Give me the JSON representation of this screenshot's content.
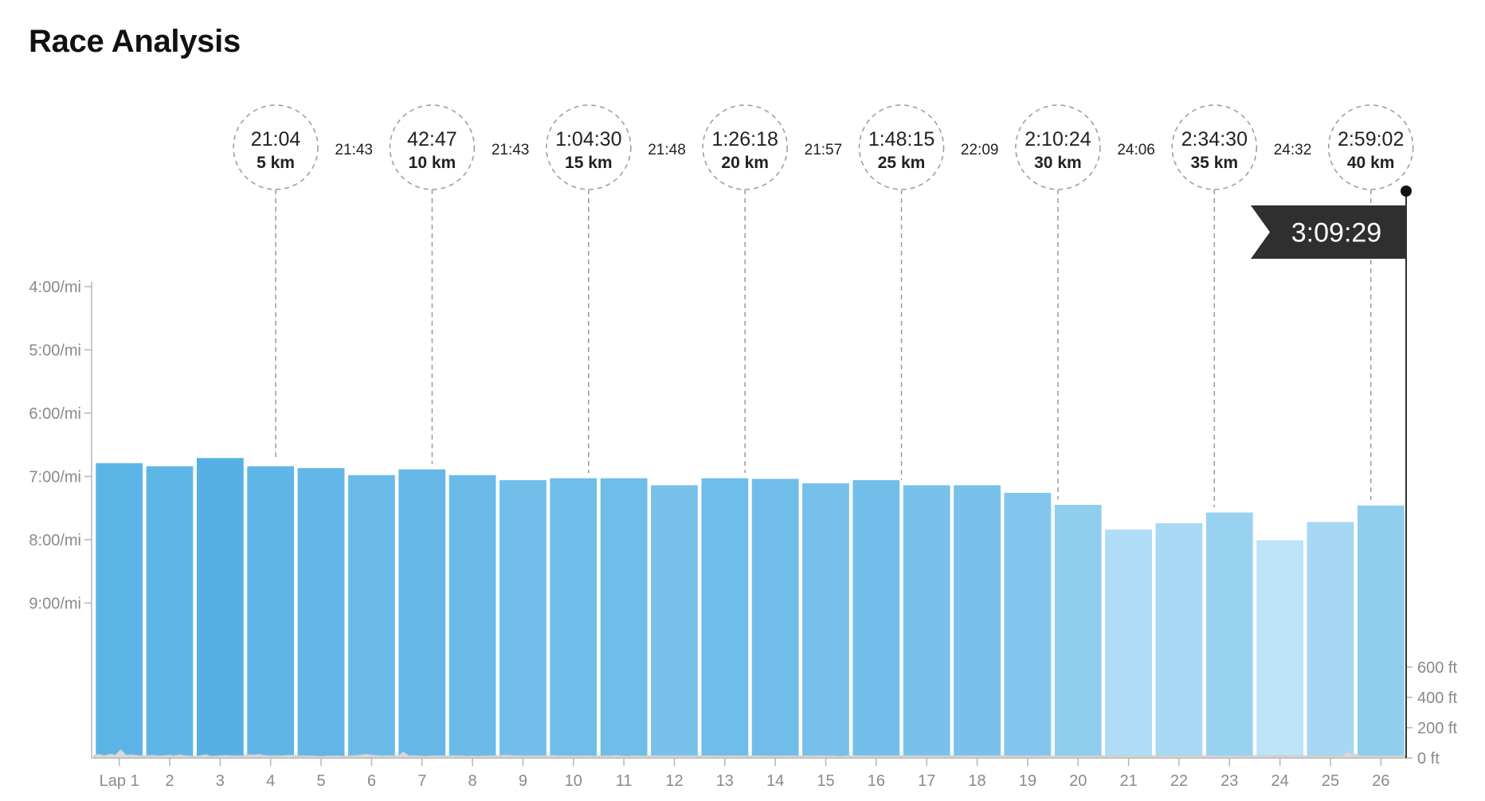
{
  "page": {
    "title": "Race Analysis"
  },
  "colors": {
    "bar_fastest": "#56b0e5",
    "bar_slowest": "#bde3f7",
    "bar_stroke": "#ffffff",
    "elevation": "#d9d9d9",
    "axis": "#b5b5b5",
    "marker_line": "#9a9a9a",
    "flag": "#2f2f2f"
  },
  "chart_data": {
    "type": "bar",
    "xlabel": "",
    "ylabel": "",
    "categories": [
      "Lap 1",
      "2",
      "3",
      "4",
      "5",
      "6",
      "7",
      "8",
      "9",
      "10",
      "11",
      "12",
      "13",
      "14",
      "15",
      "16",
      "17",
      "18",
      "19",
      "20",
      "21",
      "22",
      "23",
      "24",
      "25",
      "26"
    ],
    "y_unit": "min/mi",
    "y_ticks": [
      {
        "label": "4:00/mi",
        "value": 4
      },
      {
        "label": "5:00/mi",
        "value": 5
      },
      {
        "label": "6:00/mi",
        "value": 6
      },
      {
        "label": "7:00/mi",
        "value": 7
      },
      {
        "label": "8:00/mi",
        "value": 8
      },
      {
        "label": "9:00/mi",
        "value": 9
      }
    ],
    "ylim": [
      3.9,
      11.45
    ],
    "series": [
      {
        "values": [
          6.78,
          6.83,
          6.7,
          6.83,
          6.86,
          6.97,
          6.88,
          6.97,
          7.05,
          7.02,
          7.02,
          7.13,
          7.02,
          7.03,
          7.1,
          7.05,
          7.13,
          7.13,
          7.25,
          7.44,
          7.83,
          7.73,
          7.56,
          8.0,
          7.71,
          7.45
        ]
      }
    ],
    "elevation": {
      "unit": "ft",
      "ticks": [
        {
          "label": "600 ft",
          "value": 600
        },
        {
          "label": "400 ft",
          "value": 400
        },
        {
          "label": "200 ft",
          "value": 200
        },
        {
          "label": "0 ft",
          "value": 0
        }
      ],
      "ylim": [
        0,
        620
      ],
      "profile": [
        20,
        24,
        16,
        26,
        20,
        55,
        20,
        22,
        18,
        14,
        16,
        18,
        14,
        16,
        20,
        14,
        22,
        16,
        14,
        12,
        16,
        22,
        12,
        14,
        16,
        18,
        14,
        14,
        16,
        22,
        20,
        24,
        18,
        14,
        16,
        14,
        18,
        20,
        16,
        14,
        14,
        14,
        12,
        12,
        14,
        14,
        14,
        12,
        14,
        16,
        20,
        26,
        20,
        18,
        14,
        16,
        14,
        12,
        40,
        16,
        14,
        14,
        12,
        14,
        14,
        16,
        14,
        14,
        16,
        14,
        12,
        14,
        12,
        14,
        14,
        16,
        16,
        20,
        18,
        16,
        14,
        14,
        16,
        14,
        16,
        14,
        18,
        16,
        14,
        14,
        14,
        14,
        16,
        14,
        14,
        14,
        14,
        16,
        18,
        14,
        12,
        16,
        14,
        14,
        14,
        16,
        14,
        14,
        14,
        16,
        14,
        14,
        14,
        14,
        14,
        16,
        14,
        14,
        14,
        14,
        16,
        14,
        14,
        14,
        14,
        14,
        14,
        14,
        14,
        14,
        16,
        14,
        14,
        14,
        14,
        14,
        16,
        14,
        14,
        14,
        12,
        14,
        14,
        16,
        14,
        14,
        14,
        14,
        14,
        14,
        14,
        14,
        14,
        14,
        14,
        14,
        16,
        14,
        14,
        14,
        14,
        14,
        14,
        14,
        14,
        16,
        14,
        14,
        14,
        14,
        14,
        14,
        14,
        16,
        14,
        14,
        14,
        14,
        16,
        14,
        14,
        14,
        14,
        14,
        14,
        14,
        16,
        14,
        14,
        14,
        14,
        14,
        14,
        16,
        14,
        14,
        14,
        14,
        14,
        14,
        14,
        14,
        16,
        14,
        14,
        14,
        14,
        16,
        14,
        18,
        16,
        14,
        14,
        14,
        16,
        14,
        14,
        16,
        14,
        14,
        14,
        14,
        14,
        14,
        14,
        14,
        14,
        14,
        14,
        14,
        14,
        14,
        14,
        14,
        14,
        40,
        28,
        18,
        14,
        14,
        14,
        14,
        14,
        14,
        14,
        14,
        14
      ]
    },
    "split_markers": [
      {
        "time": "21:04",
        "distance": "5 km",
        "lap_position": 3.6
      },
      {
        "time": "42:47",
        "distance": "10 km",
        "lap_position": 6.7
      },
      {
        "time": "1:04:30",
        "distance": "15 km",
        "lap_position": 9.8
      },
      {
        "time": "1:26:18",
        "distance": "20 km",
        "lap_position": 12.9
      },
      {
        "time": "1:48:15",
        "distance": "25 km",
        "lap_position": 16.0
      },
      {
        "time": "2:10:24",
        "distance": "30 km",
        "lap_position": 19.1
      },
      {
        "time": "2:34:30",
        "distance": "35 km",
        "lap_position": 22.2
      },
      {
        "time": "2:59:02",
        "distance": "40 km",
        "lap_position": 25.3
      }
    ],
    "split_times": [
      "21:43",
      "21:43",
      "21:48",
      "21:57",
      "22:09",
      "24:06",
      "24:32"
    ],
    "finish_time": "3:09:29",
    "grid": false,
    "legend": "none"
  }
}
